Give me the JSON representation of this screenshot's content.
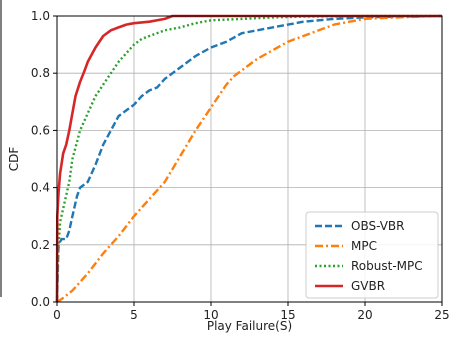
{
  "chart_data": {
    "type": "line",
    "xlabel": "Play Failure(S)",
    "ylabel": "CDF",
    "xlim": [
      0,
      25
    ],
    "ylim": [
      0,
      1.0
    ],
    "xticks": [
      0,
      5,
      10,
      15,
      20,
      25
    ],
    "yticks": [
      0.0,
      0.2,
      0.4,
      0.6,
      0.8,
      1.0
    ],
    "xtick_labels": [
      "0",
      "5",
      "10",
      "15",
      "20",
      "25"
    ],
    "ytick_labels": [
      "0.0",
      "0.2",
      "0.4",
      "0.6",
      "0.8",
      "1.0"
    ],
    "grid": true,
    "legend_position": "lower-right",
    "series": [
      {
        "name": "OBS-VBR",
        "color": "#1f77b4",
        "dash": "dashed",
        "x": [
          0,
          0.05,
          0.1,
          0.3,
          0.6,
          0.8,
          1.0,
          1.3,
          1.5,
          2.0,
          2.5,
          3.0,
          3.5,
          4.0,
          4.5,
          5.0,
          5.5,
          6.0,
          6.5,
          7.0,
          8.0,
          9.0,
          10.0,
          11.0,
          12.0,
          13.0,
          14.0,
          15.0,
          16.0,
          17.0,
          18.0,
          20.0,
          22.0,
          25.0
        ],
        "y": [
          0.0,
          0.1,
          0.2,
          0.22,
          0.22,
          0.25,
          0.3,
          0.37,
          0.4,
          0.42,
          0.48,
          0.55,
          0.6,
          0.65,
          0.67,
          0.69,
          0.72,
          0.74,
          0.75,
          0.78,
          0.82,
          0.86,
          0.89,
          0.91,
          0.94,
          0.95,
          0.96,
          0.97,
          0.98,
          0.985,
          0.99,
          0.995,
          0.998,
          1.0
        ]
      },
      {
        "name": "MPC",
        "color": "#ff7f0e",
        "dash": "dashdot",
        "x": [
          0,
          0.3,
          1.0,
          2.0,
          3.0,
          4.0,
          5.0,
          6.0,
          7.0,
          8.0,
          9.0,
          10.0,
          11.0,
          11.5,
          12.0,
          13.0,
          14.0,
          15.0,
          16.0,
          17.0,
          18.0,
          19.0,
          20.0,
          22.0,
          25.0
        ],
        "y": [
          0.0,
          0.01,
          0.04,
          0.1,
          0.17,
          0.23,
          0.3,
          0.36,
          0.42,
          0.51,
          0.6,
          0.68,
          0.76,
          0.79,
          0.81,
          0.85,
          0.88,
          0.91,
          0.93,
          0.95,
          0.97,
          0.98,
          0.99,
          0.995,
          1.0
        ]
      },
      {
        "name": "Robust-MPC",
        "color": "#2ca02c",
        "dash": "dotted",
        "x": [
          0,
          0.05,
          0.2,
          0.5,
          0.8,
          1.0,
          1.5,
          2.0,
          2.5,
          3.0,
          3.5,
          4.0,
          4.5,
          5.0,
          5.5,
          6.0,
          7.0,
          8.0,
          9.0,
          10.0,
          12.0,
          14.0,
          16.0,
          20.0,
          25.0
        ],
        "y": [
          0.0,
          0.15,
          0.28,
          0.35,
          0.42,
          0.5,
          0.6,
          0.66,
          0.72,
          0.76,
          0.8,
          0.84,
          0.87,
          0.9,
          0.92,
          0.93,
          0.95,
          0.96,
          0.975,
          0.985,
          0.99,
          0.995,
          0.998,
          1.0,
          1.0
        ]
      },
      {
        "name": "GVBR",
        "color": "#d62728",
        "dash": "solid",
        "x": [
          0,
          0.02,
          0.1,
          0.2,
          0.4,
          0.6,
          0.8,
          1.0,
          1.2,
          1.5,
          1.8,
          2.0,
          2.5,
          3.0,
          3.5,
          4.0,
          4.5,
          5.0,
          6.0,
          7.0,
          7.5,
          9.0,
          12.0,
          15.0,
          25.0
        ],
        "y": [
          0.0,
          0.3,
          0.38,
          0.45,
          0.52,
          0.55,
          0.6,
          0.66,
          0.72,
          0.77,
          0.81,
          0.84,
          0.89,
          0.93,
          0.95,
          0.96,
          0.97,
          0.975,
          0.98,
          0.99,
          1.0,
          1.0,
          1.0,
          1.0,
          1.0
        ]
      }
    ]
  }
}
